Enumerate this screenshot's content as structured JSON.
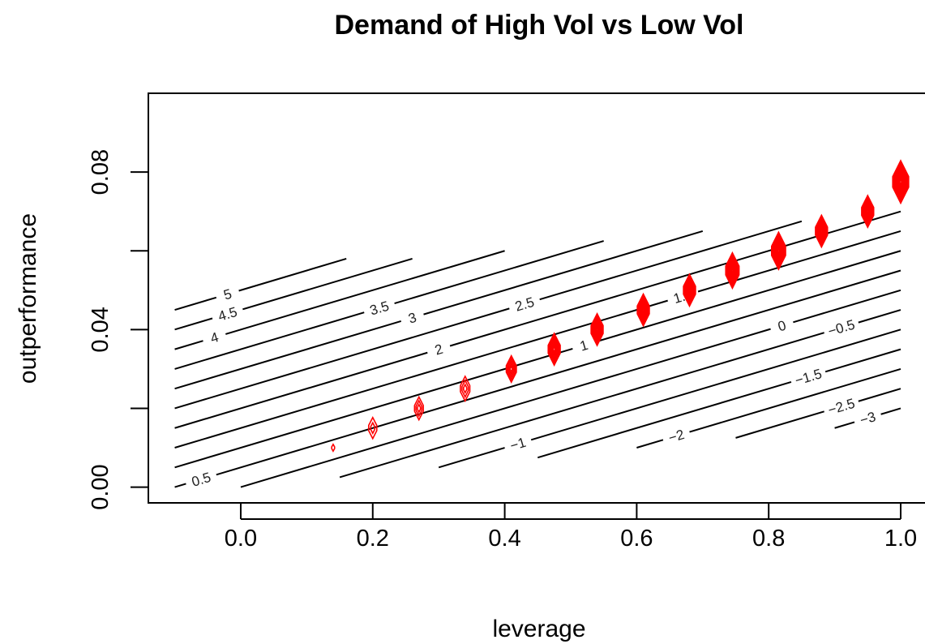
{
  "chart_data": {
    "type": "contour",
    "title": "Demand of High Vol vs Low Vol",
    "xlabel": "leverage",
    "ylabel": "outperformance",
    "xlim": [
      -0.14,
      1.0
    ],
    "ylim": [
      -0.004,
      0.1
    ],
    "x_ticks": [
      "0.0",
      "0.2",
      "0.4",
      "0.6",
      "0.8",
      "1.0"
    ],
    "x_tick_values": [
      0.0,
      0.2,
      0.4,
      0.6,
      0.8,
      1.0
    ],
    "y_ticks": [
      "0.00",
      "0.04",
      "0.08"
    ],
    "y_tick_values": [
      0.0,
      0.04,
      0.08
    ],
    "grid": false,
    "contours": {
      "color": "#000000",
      "slope": 0.05,
      "levels": [
        {
          "level": 5,
          "label": "5",
          "x1": -0.1,
          "x2": 0.16,
          "label_x": -0.02
        },
        {
          "level": 4.5,
          "label": "4.5",
          "x1": -0.1,
          "x2": 0.26,
          "label_x": -0.02
        },
        {
          "level": 4,
          "label": "4",
          "x1": -0.1,
          "x2": 0.4,
          "label_x": -0.04
        },
        {
          "level": 3.5,
          "label": "3.5",
          "x1": -0.1,
          "x2": 0.55,
          "label_x": 0.21
        },
        {
          "level": 3,
          "label": "3",
          "x1": -0.1,
          "x2": 0.7,
          "label_x": 0.26
        },
        {
          "level": 2.5,
          "label": "2.5",
          "x1": -0.1,
          "x2": 0.85,
          "label_x": 0.43
        },
        {
          "level": 2,
          "label": "2",
          "x1": -0.1,
          "x2": 1.0,
          "label_x": 0.3
        },
        {
          "level": 1.5,
          "label": "1.5",
          "x1": -0.1,
          "x2": 1.0,
          "label_x": 0.67
        },
        {
          "level": 1,
          "label": "1",
          "x1": -0.1,
          "x2": 1.0,
          "label_x": 0.52
        },
        {
          "level": 0.5,
          "label": "0.5",
          "x1": -0.1,
          "x2": 1.0,
          "label_x": -0.06
        },
        {
          "level": 0,
          "label": "0",
          "x1": 0.0,
          "x2": 1.0,
          "label_x": 0.82
        },
        {
          "level": -0.5,
          "label": "−0.5",
          "x1": 0.15,
          "x2": 1.0,
          "label_x": 0.91
        },
        {
          "level": -1,
          "label": "−1",
          "x1": 0.3,
          "x2": 1.0,
          "label_x": 0.42
        },
        {
          "level": -1.5,
          "label": "−1.5",
          "x1": 0.45,
          "x2": 1.0,
          "label_x": 0.86
        },
        {
          "level": -2,
          "label": "−2",
          "x1": 0.6,
          "x2": 1.0,
          "label_x": 0.66
        },
        {
          "level": -2.5,
          "label": "−2.5",
          "x1": 0.75,
          "x2": 1.0,
          "label_x": 0.91
        },
        {
          "level": -3,
          "label": "−3",
          "x1": 0.9,
          "x2": 1.0,
          "label_x": 0.95
        }
      ]
    },
    "density_markers": {
      "color": "#ff0000",
      "points": [
        {
          "x": 0.14,
          "y": 0.01,
          "size": 0.1,
          "rings": 1
        },
        {
          "x": 0.2,
          "y": 0.015,
          "size": 0.5,
          "rings": 2
        },
        {
          "x": 0.27,
          "y": 0.02,
          "size": 0.55,
          "rings": 3
        },
        {
          "x": 0.34,
          "y": 0.025,
          "size": 0.6,
          "rings": 3
        },
        {
          "x": 0.41,
          "y": 0.03,
          "size": 0.65,
          "rings": 5
        },
        {
          "x": 0.475,
          "y": 0.035,
          "size": 0.8,
          "rings": 7
        },
        {
          "x": 0.54,
          "y": 0.04,
          "size": 0.8,
          "rings": 9
        },
        {
          "x": 0.61,
          "y": 0.045,
          "size": 0.8,
          "rings": 9
        },
        {
          "x": 0.68,
          "y": 0.05,
          "size": 0.8,
          "rings": 9
        },
        {
          "x": 0.745,
          "y": 0.055,
          "size": 0.9,
          "rings": 10
        },
        {
          "x": 0.815,
          "y": 0.06,
          "size": 0.95,
          "rings": 10
        },
        {
          "x": 0.88,
          "y": 0.065,
          "size": 0.8,
          "rings": 9
        },
        {
          "x": 0.95,
          "y": 0.07,
          "size": 0.8,
          "rings": 9
        },
        {
          "x": 1.0,
          "y": 0.0775,
          "size": 1.1,
          "rings": 10
        }
      ]
    }
  }
}
